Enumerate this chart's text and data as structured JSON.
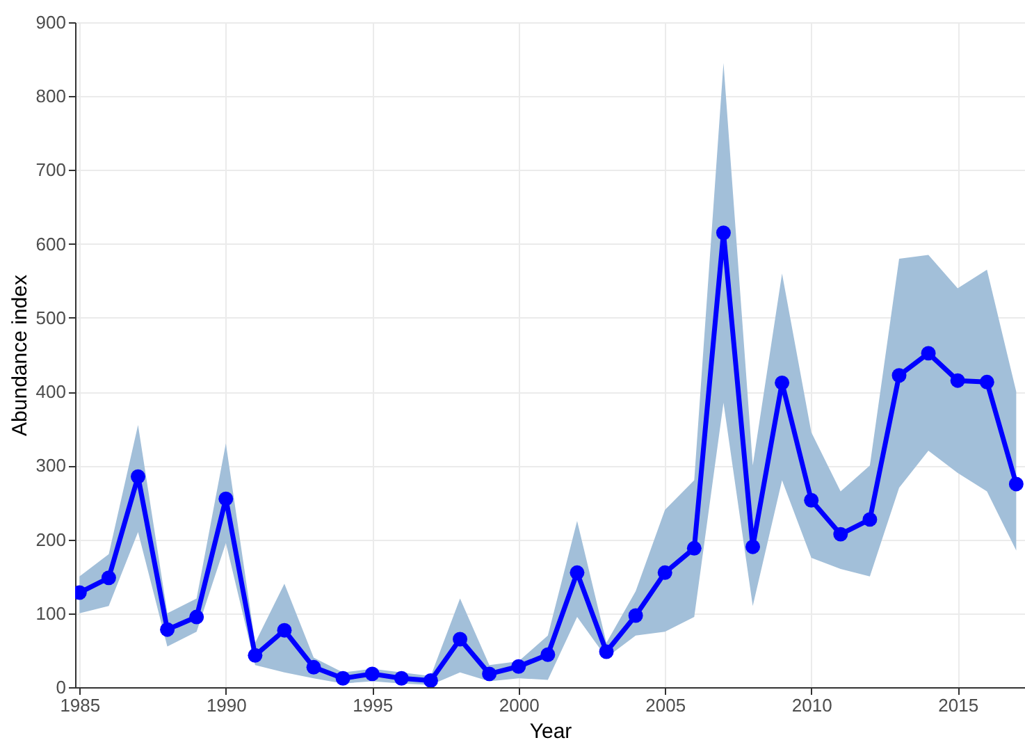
{
  "chart_data": {
    "type": "line",
    "xlabel": "Year",
    "ylabel": "Abundance index",
    "x": [
      1985,
      1986,
      1987,
      1988,
      1989,
      1990,
      1991,
      1992,
      1993,
      1994,
      1995,
      1996,
      1997,
      1998,
      1999,
      2000,
      2001,
      2002,
      2003,
      2004,
      2005,
      2006,
      2007,
      2008,
      2009,
      2010,
      2011,
      2012,
      2013,
      2014,
      2015,
      2016,
      2017
    ],
    "series": [
      {
        "color": "#0000ff",
        "values": [
          128,
          148,
          285,
          78,
          95,
          255,
          43,
          77,
          27,
          12,
          18,
          12,
          9,
          65,
          18,
          28,
          44,
          155,
          48,
          97,
          155,
          188,
          615,
          190,
          412,
          253,
          207,
          227,
          422,
          452,
          415,
          413,
          275
        ],
        "lower": [
          100,
          110,
          210,
          55,
          75,
          195,
          30,
          20,
          12,
          5,
          8,
          5,
          3,
          20,
          8,
          12,
          10,
          95,
          40,
          70,
          75,
          95,
          385,
          110,
          280,
          175,
          160,
          150,
          270,
          320,
          290,
          265,
          185
        ],
        "upper": [
          150,
          180,
          355,
          100,
          120,
          330,
          60,
          140,
          40,
          20,
          25,
          20,
          15,
          120,
          30,
          35,
          70,
          225,
          60,
          130,
          240,
          280,
          845,
          300,
          560,
          345,
          265,
          300,
          580,
          585,
          540,
          565,
          400
        ]
      }
    ],
    "xlim": [
      1984.85,
      2017.3
    ],
    "xticks": [
      1985,
      1990,
      1995,
      2000,
      2005,
      2010,
      2015
    ],
    "ylim": [
      0,
      900
    ],
    "yticks": [
      0,
      100,
      200,
      300,
      400,
      500,
      600,
      700,
      800,
      900
    ],
    "grid": true,
    "marker": "circle",
    "line_style": "solid"
  }
}
